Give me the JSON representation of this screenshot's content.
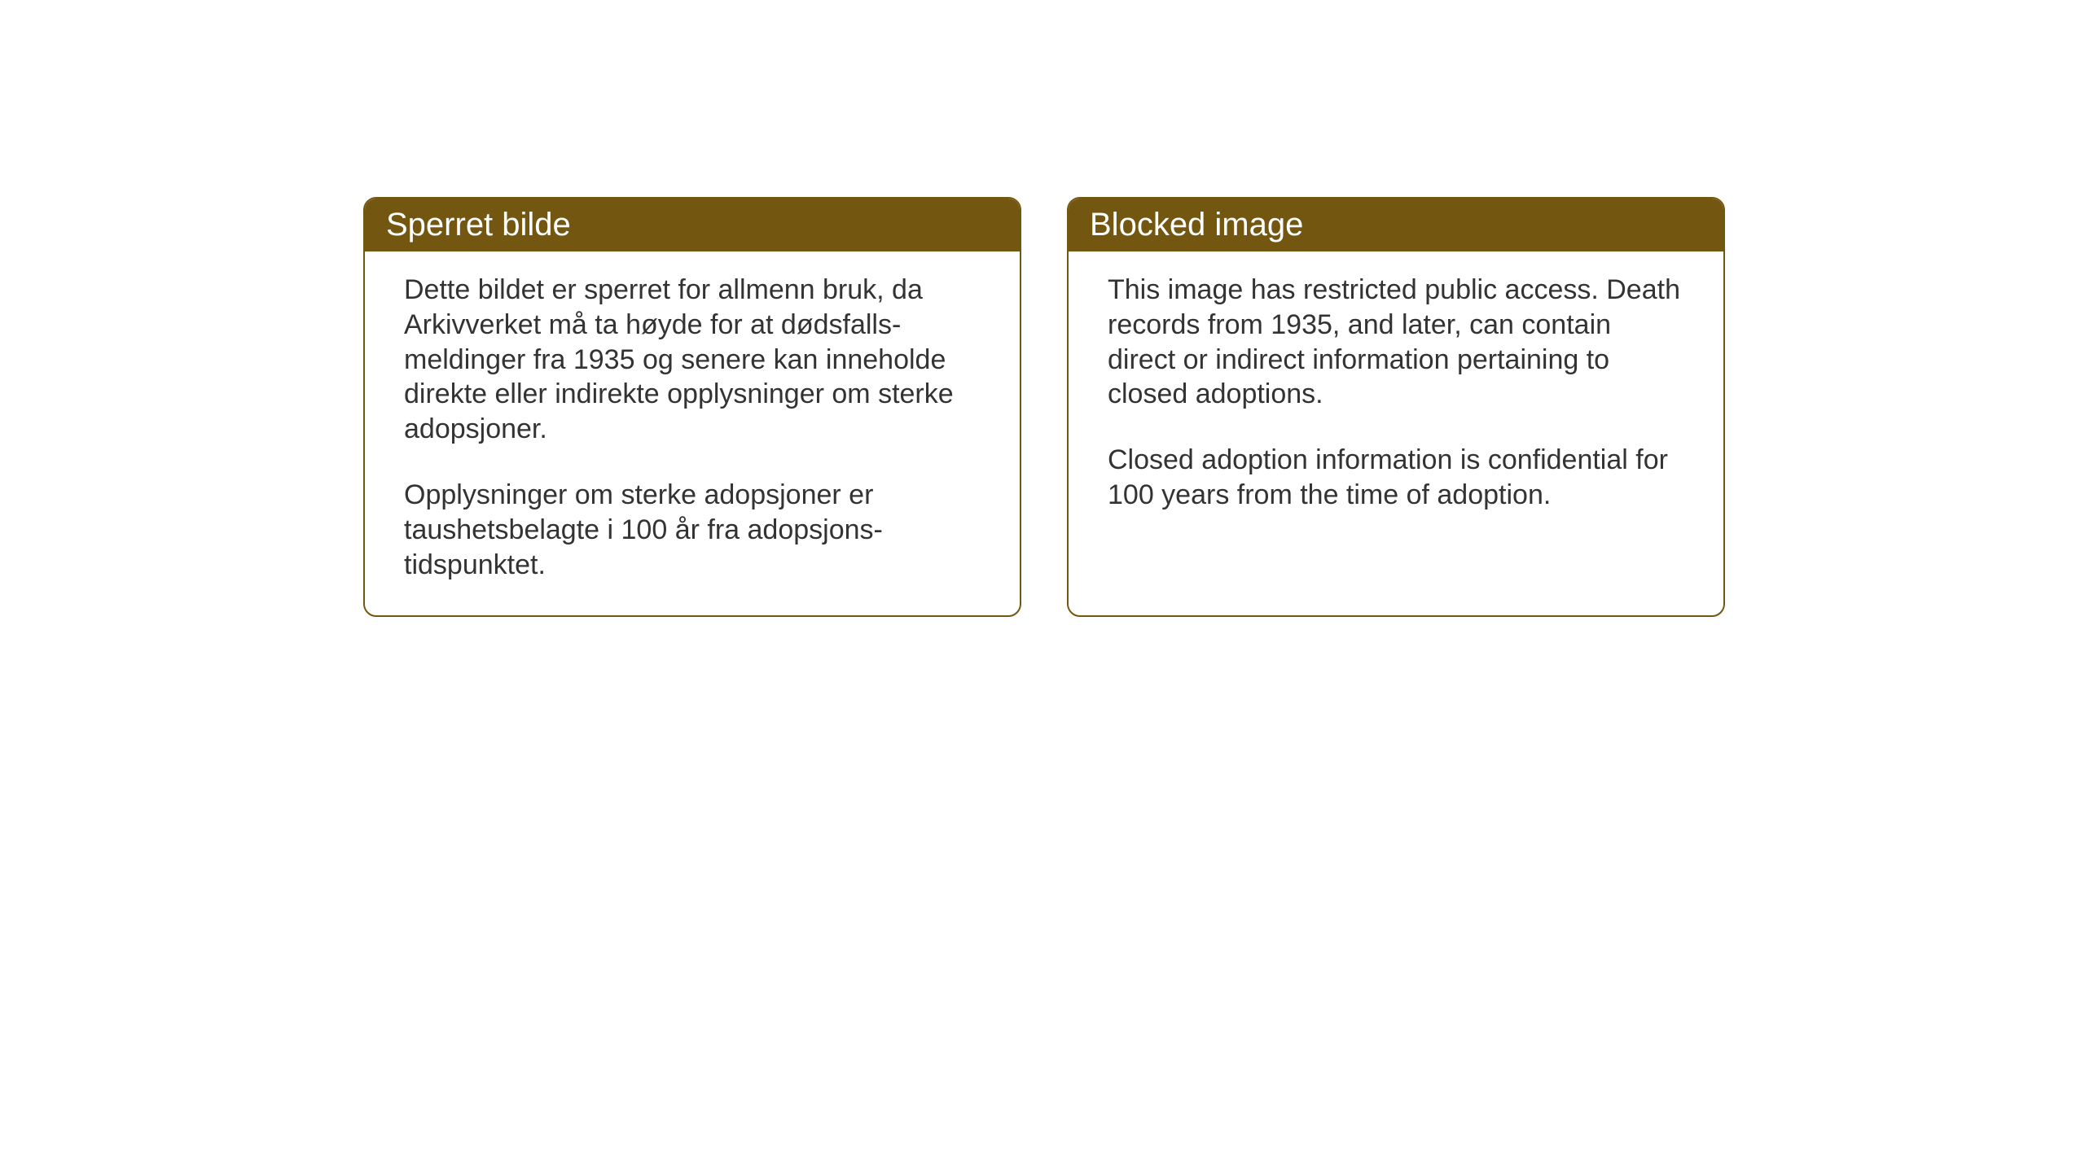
{
  "cards": {
    "norwegian": {
      "title": "Sperret bilde",
      "paragraph1": "Dette bildet er sperret for allmenn bruk, da Arkivverket må ta høyde for at dødsfalls-meldinger fra 1935 og senere kan inneholde direkte eller indirekte opplysninger om sterke adopsjoner.",
      "paragraph2": "Opplysninger om sterke adopsjoner er taushetsbelagte i 100 år fra adopsjons-tidspunktet."
    },
    "english": {
      "title": "Blocked image",
      "paragraph1": "This image has restricted public access. Death records from 1935, and later, can contain direct or indirect information pertaining to closed adoptions.",
      "paragraph2": "Closed adoption information is confidential for 100 years from the time of adoption."
    }
  },
  "styling": {
    "header_bg_color": "#735711",
    "header_text_color": "#ffffff",
    "border_color": "#735711",
    "body_text_color": "#333333",
    "card_bg_color": "#ffffff",
    "page_bg_color": "#ffffff",
    "border_radius": 16,
    "header_fontsize": 40,
    "body_fontsize": 34
  }
}
